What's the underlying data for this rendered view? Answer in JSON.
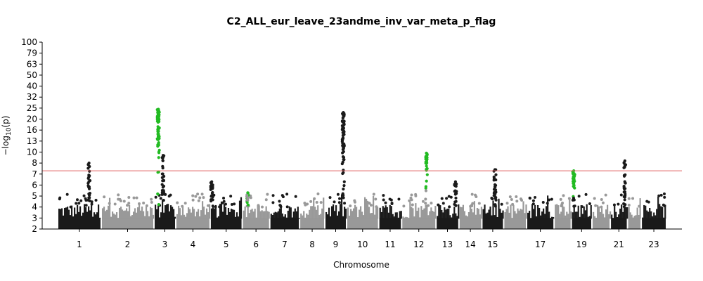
{
  "chart_data": {
    "type": "scatter",
    "title": "C2_ALL_eur_leave_23andme_inv_var_meta_p_flag",
    "xlabel": "Chromosome",
    "ylabel_prefix": "−log",
    "ylabel_sub": "10",
    "ylabel_suffix": "(p)",
    "y_ticks": [
      "2",
      "3",
      "4",
      "5",
      "6",
      "7",
      "8",
      "10",
      "13",
      "16",
      "20",
      "25",
      "32",
      "40",
      "50",
      "63",
      "79",
      "100"
    ],
    "y_tick_values": [
      2,
      3,
      4,
      5,
      6,
      7,
      8,
      10,
      13,
      16,
      20,
      25,
      32,
      40,
      50,
      63,
      79,
      100
    ],
    "x_tick_labels": [
      "1",
      "2",
      "3",
      "4",
      "5",
      "6",
      "7",
      "8",
      "9",
      "10",
      "11",
      "12",
      "13",
      "14",
      "15",
      "17",
      "19",
      "21",
      "23"
    ],
    "x_tick_chrom": [
      1,
      2,
      3,
      4,
      5,
      6,
      7,
      8,
      9,
      10,
      11,
      12,
      13,
      14,
      15,
      17,
      19,
      21,
      23
    ],
    "chromosomes": [
      1,
      2,
      3,
      4,
      5,
      6,
      7,
      8,
      9,
      10,
      11,
      12,
      13,
      14,
      15,
      16,
      17,
      18,
      19,
      20,
      21,
      22,
      23
    ],
    "significance_threshold": 7.3,
    "colors": {
      "odd": "#1a1a1a",
      "even": "#999999",
      "highlight": "#22bb22",
      "threshold": "#e06060"
    },
    "peaks": [
      {
        "chrom": 1,
        "pos": 0.72,
        "max": 8.0,
        "color": "odd"
      },
      {
        "chrom": 3,
        "pos": 0.2,
        "max": 24.5,
        "color": "highlight"
      },
      {
        "chrom": 3,
        "pos": 0.42,
        "max": 9.4,
        "color": "odd"
      },
      {
        "chrom": 5,
        "pos": 0.05,
        "max": 6.3,
        "color": "odd"
      },
      {
        "chrom": 6,
        "pos": 0.2,
        "max": 5.3,
        "color": "highlight"
      },
      {
        "chrom": 9,
        "pos": 0.85,
        "max": 23.0,
        "color": "odd"
      },
      {
        "chrom": 12,
        "pos": 0.72,
        "max": 9.8,
        "color": "highlight"
      },
      {
        "chrom": 13,
        "pos": 0.85,
        "max": 6.3,
        "color": "odd"
      },
      {
        "chrom": 15,
        "pos": 0.6,
        "max": 7.4,
        "color": "odd"
      },
      {
        "chrom": 19,
        "pos": 0.12,
        "max": 7.3,
        "color": "highlight"
      },
      {
        "chrom": 21,
        "pos": 0.85,
        "max": 8.4,
        "color": "odd"
      }
    ]
  }
}
